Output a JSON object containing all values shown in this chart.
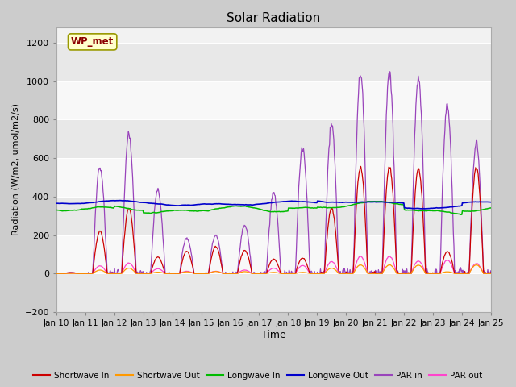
{
  "title": "Solar Radiation",
  "ylabel": "Radiation (W/m2, umol/m2/s)",
  "xlabel": "Time",
  "ylim": [
    -200,
    1280
  ],
  "yticks": [
    -200,
    0,
    200,
    400,
    600,
    800,
    1000,
    1200
  ],
  "xtick_labels": [
    "Jan 10",
    "Jan 11",
    "Jan 12",
    "Jan 13",
    "Jan 14",
    "Jan 15",
    "Jan 16",
    "Jan 17",
    "Jan 18",
    "Jan 19",
    "Jan 20",
    "Jan 21",
    "Jan 22",
    "Jan 23",
    "Jan 24",
    "Jan 25"
  ],
  "legend_entries": [
    "Shortwave In",
    "Shortwave Out",
    "Longwave In",
    "Longwave Out",
    "PAR in",
    "PAR out"
  ],
  "legend_colors": [
    "#cc0000",
    "#ff9900",
    "#00bb00",
    "#0000cc",
    "#9944bb",
    "#ff44cc"
  ],
  "annotation_text": "WP_met",
  "fig_bg": "#cccccc",
  "ax_bg": "#f2f2f2",
  "grid_color": "#ffffff",
  "colors": {
    "shortwave_in": "#cc0000",
    "shortwave_out": "#ff9900",
    "longwave_in": "#00bb00",
    "longwave_out": "#0000cc",
    "par_in": "#9944bb",
    "par_out": "#ff44cc"
  },
  "band_colors": [
    "#e8e8e8",
    "#f8f8f8"
  ],
  "band_ranges": [
    [
      -200,
      0
    ],
    [
      0,
      200
    ],
    [
      200,
      400
    ],
    [
      400,
      600
    ],
    [
      600,
      800
    ],
    [
      800,
      1000
    ],
    [
      1000,
      1200
    ]
  ]
}
